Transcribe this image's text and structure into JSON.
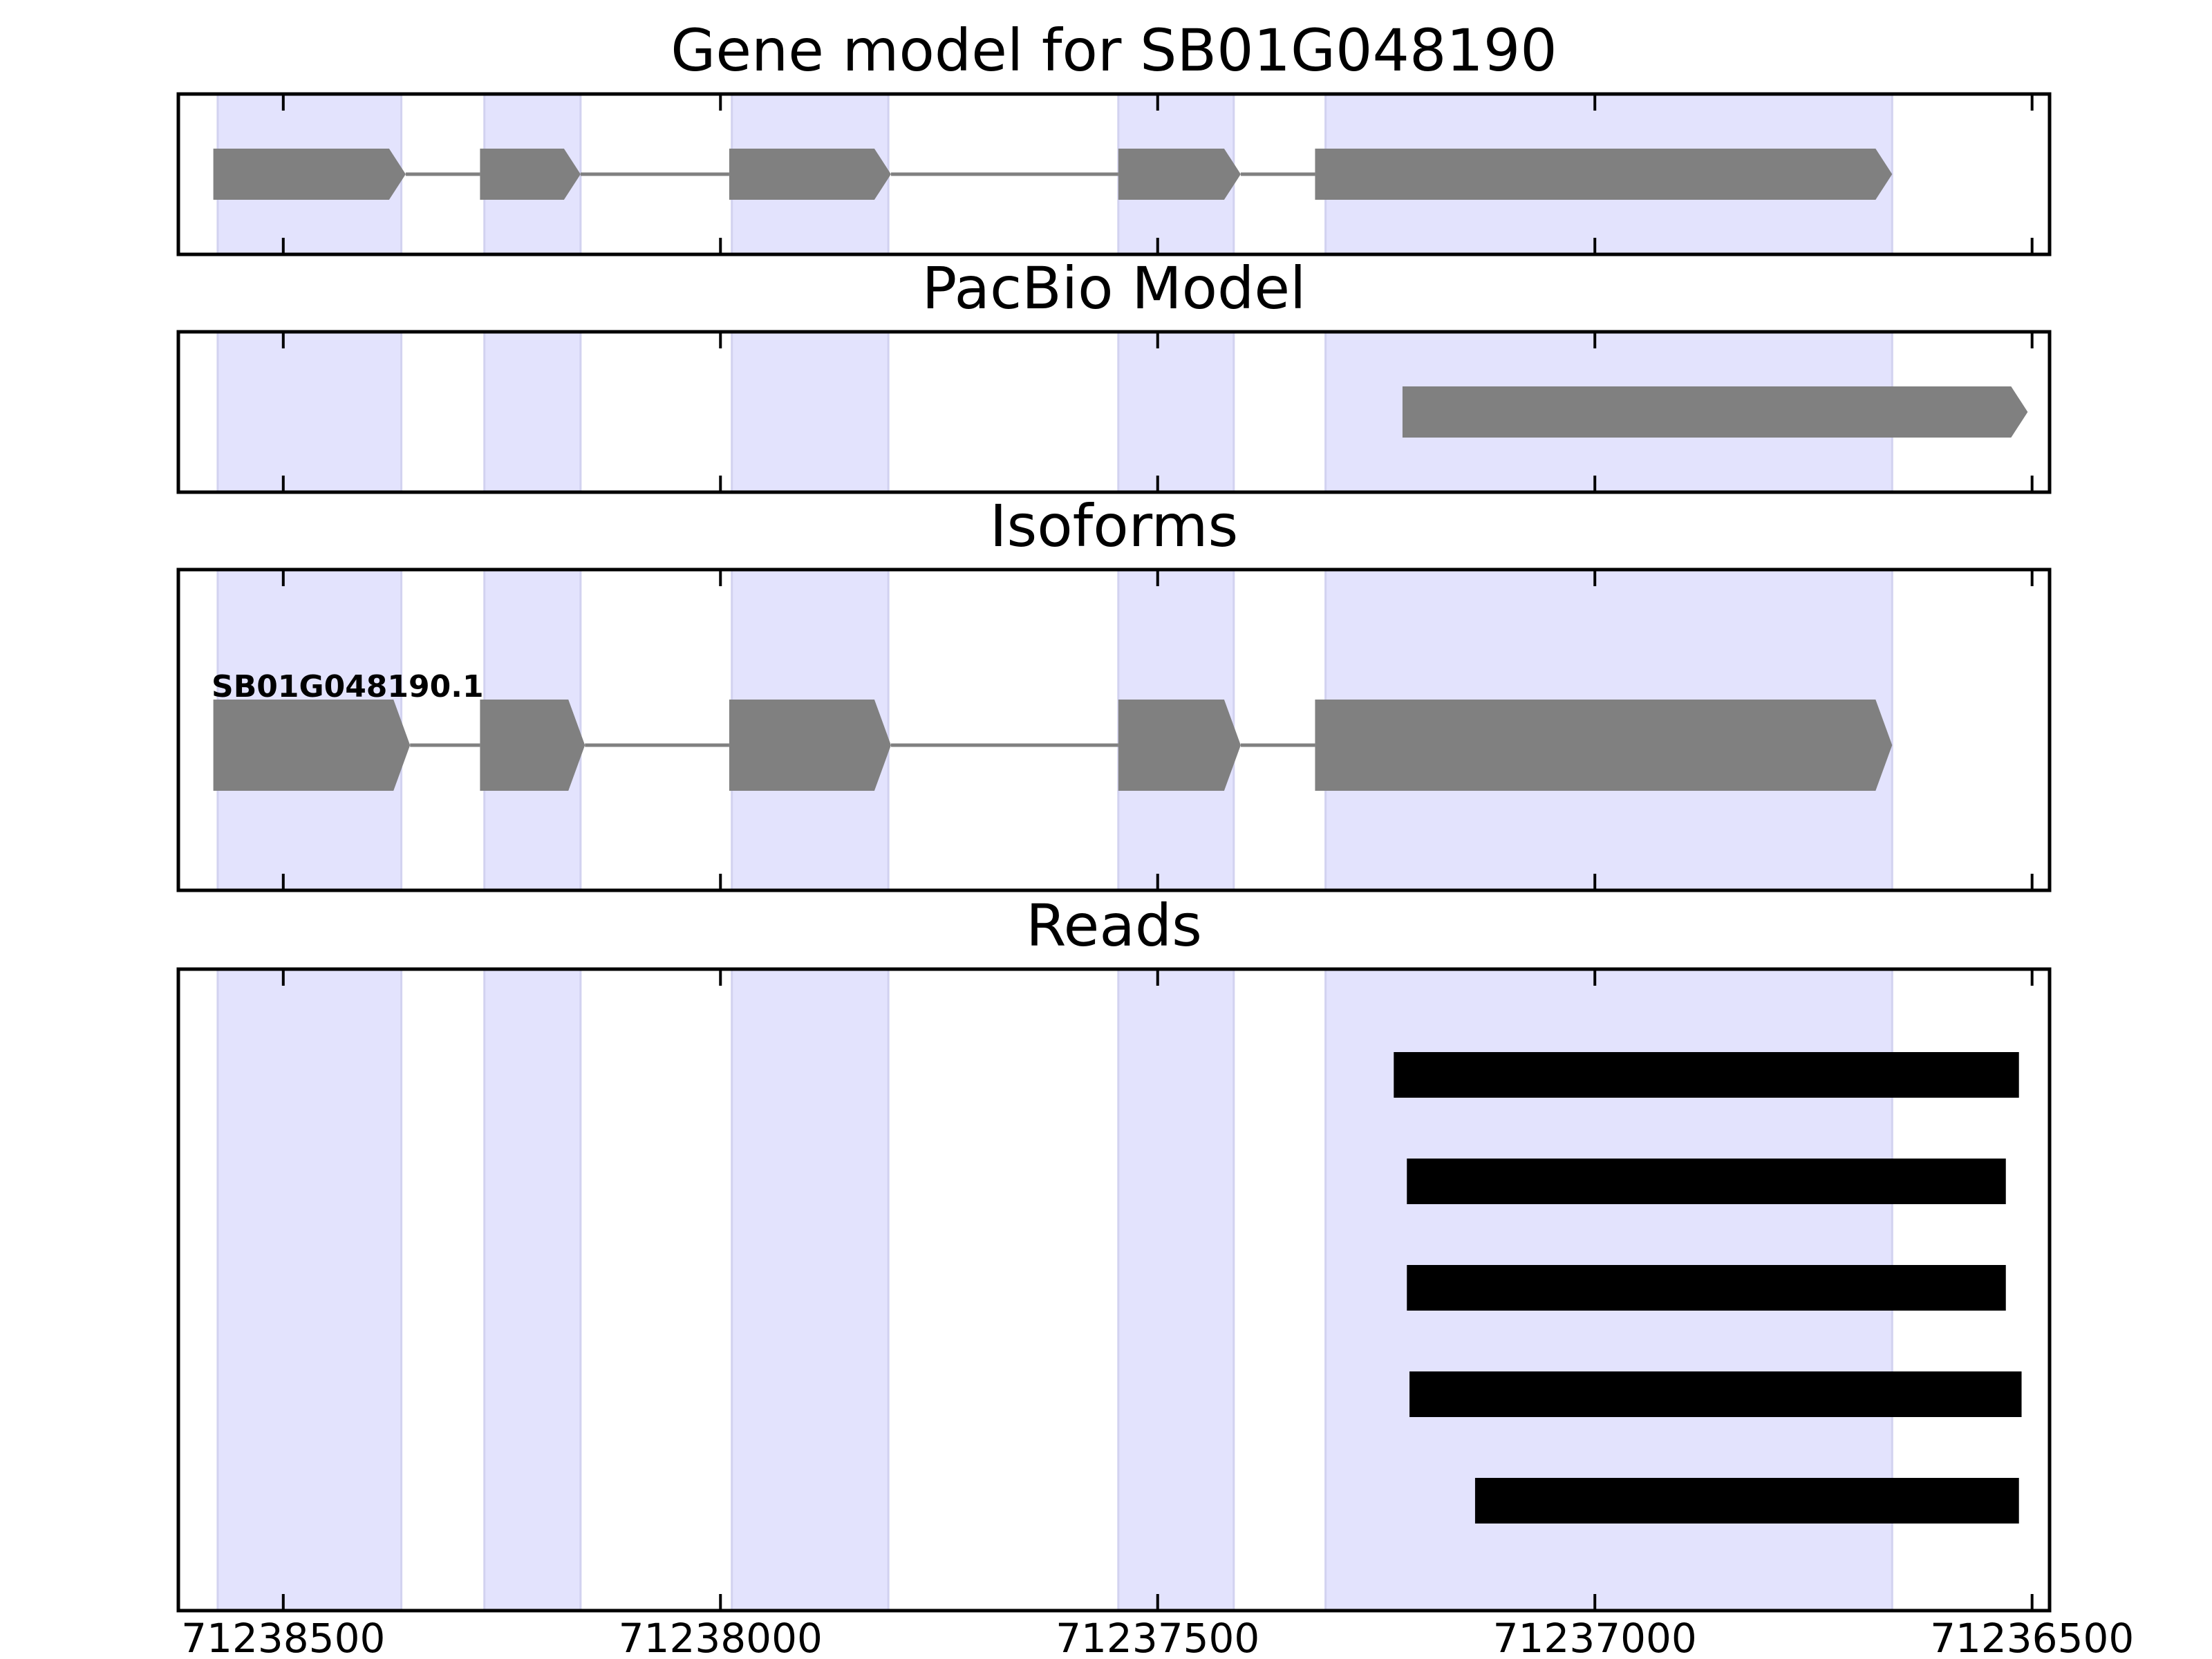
{
  "figure": {
    "panels": [
      {
        "id": "gene-model",
        "title": "Gene model for SB01G048190",
        "type": "gene",
        "exons": [
          [
            71238580,
            71238360
          ],
          [
            71238275,
            71238160
          ],
          [
            71237990,
            71237805
          ],
          [
            71237545,
            71237405
          ],
          [
            71237320,
            71236660
          ]
        ]
      },
      {
        "id": "pacbio-model",
        "title": "PacBio Model",
        "type": "gene",
        "exons": [
          [
            71237220,
            71236505
          ]
        ]
      },
      {
        "id": "isoforms",
        "title": "Isoforms",
        "type": "gene",
        "isoform_label": "SB01G048190.1",
        "exons": [
          [
            71238580,
            71238355
          ],
          [
            71238275,
            71238155
          ],
          [
            71237990,
            71237805
          ],
          [
            71237545,
            71237405
          ],
          [
            71237320,
            71236660
          ]
        ]
      },
      {
        "id": "reads",
        "title": "Reads",
        "type": "reads",
        "reads": [
          [
            71237230,
            71236515
          ],
          [
            71237215,
            71236530
          ],
          [
            71237215,
            71236530
          ],
          [
            71237212,
            71236512
          ],
          [
            71237137,
            71236515
          ]
        ]
      }
    ],
    "highlight_regions": [
      [
        71238575,
        71238365
      ],
      [
        71238270,
        71238160
      ],
      [
        71237987,
        71237808
      ],
      [
        71237545,
        71237413
      ],
      [
        71237308,
        71236660
      ]
    ],
    "x_axis": {
      "min": 71238620,
      "max": 71236480,
      "reversed": true,
      "ticks": [
        {
          "value": 71238500,
          "label": "71238500"
        },
        {
          "value": 71238000,
          "label": "71238000"
        },
        {
          "value": 71237500,
          "label": "71237500"
        },
        {
          "value": 71237000,
          "label": "71237000"
        },
        {
          "value": 71236500,
          "label": "71236500"
        }
      ]
    },
    "colors": {
      "highlight": "#e3e3fd",
      "exon": "#808080",
      "intron": "#808080",
      "read": "#000000"
    }
  }
}
